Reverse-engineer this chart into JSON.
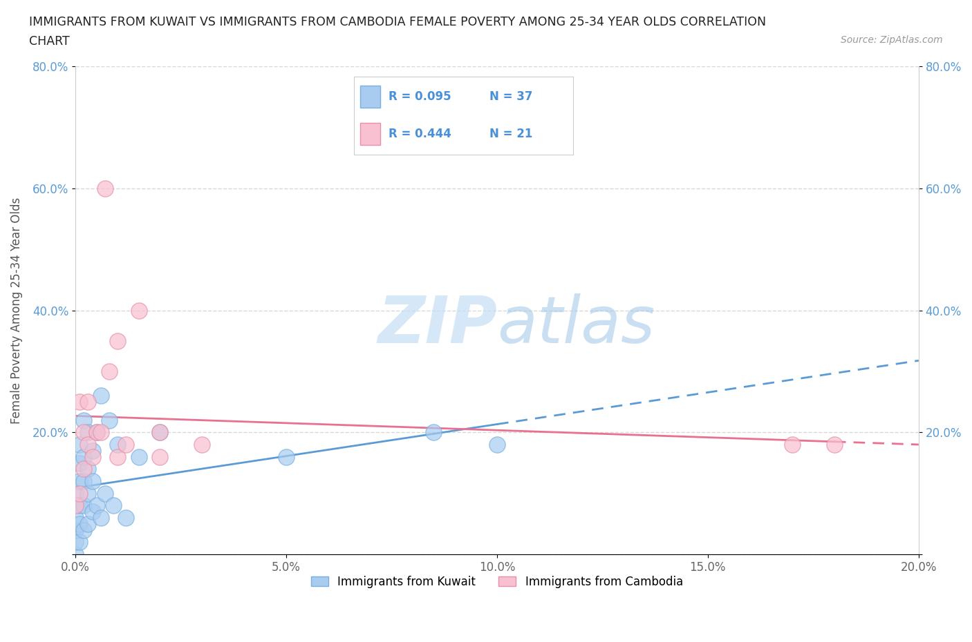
{
  "title_line1": "IMMIGRANTS FROM KUWAIT VS IMMIGRANTS FROM CAMBODIA FEMALE POVERTY AMONG 25-34 YEAR OLDS CORRELATION",
  "title_line2": "CHART",
  "source": "Source: ZipAtlas.com",
  "ylabel": "Female Poverty Among 25-34 Year Olds",
  "kuwait": {
    "R": 0.095,
    "N": 37,
    "dot_color": "#a8ccf0",
    "dot_edge_color": "#7ab0e0",
    "line_color": "#5b9bd5",
    "x": [
      0.0,
      0.0,
      0.0,
      0.0,
      0.0,
      0.001,
      0.001,
      0.001,
      0.001,
      0.001,
      0.001,
      0.002,
      0.002,
      0.002,
      0.002,
      0.002,
      0.003,
      0.003,
      0.003,
      0.003,
      0.004,
      0.004,
      0.004,
      0.005,
      0.005,
      0.006,
      0.006,
      0.007,
      0.008,
      0.009,
      0.01,
      0.012,
      0.015,
      0.02,
      0.05,
      0.085,
      0.1
    ],
    "y": [
      0.0,
      0.02,
      0.04,
      0.06,
      0.1,
      0.02,
      0.05,
      0.08,
      0.12,
      0.15,
      0.18,
      0.04,
      0.08,
      0.12,
      0.16,
      0.22,
      0.05,
      0.1,
      0.14,
      0.2,
      0.07,
      0.12,
      0.17,
      0.08,
      0.2,
      0.06,
      0.26,
      0.1,
      0.22,
      0.08,
      0.18,
      0.06,
      0.16,
      0.2,
      0.16,
      0.2,
      0.18
    ]
  },
  "cambodia": {
    "R": 0.444,
    "N": 21,
    "dot_color": "#f8c0d0",
    "dot_edge_color": "#e890a8",
    "line_color": "#e87090",
    "x": [
      0.0,
      0.001,
      0.001,
      0.002,
      0.002,
      0.003,
      0.003,
      0.004,
      0.005,
      0.006,
      0.007,
      0.008,
      0.01,
      0.01,
      0.012,
      0.015,
      0.02,
      0.02,
      0.03,
      0.17,
      0.18
    ],
    "y": [
      0.08,
      0.1,
      0.25,
      0.14,
      0.2,
      0.18,
      0.25,
      0.16,
      0.2,
      0.2,
      0.6,
      0.3,
      0.35,
      0.16,
      0.18,
      0.4,
      0.16,
      0.2,
      0.18,
      0.18,
      0.18
    ]
  },
  "xlim": [
    0.0,
    0.2
  ],
  "ylim": [
    0.0,
    0.8
  ],
  "xticks": [
    0.0,
    0.05,
    0.1,
    0.15,
    0.2
  ],
  "xtick_labels": [
    "0.0%",
    "5.0%",
    "10.0%",
    "15.0%",
    "20.0%"
  ],
  "yticks": [
    0.0,
    0.2,
    0.4,
    0.6,
    0.8
  ],
  "ytick_labels_left": [
    "",
    "20.0%",
    "40.0%",
    "60.0%",
    "80.0%"
  ],
  "ytick_labels_right": [
    "",
    "20.0%",
    "40.0%",
    "60.0%",
    "80.0%"
  ],
  "background_color": "#ffffff",
  "grid_color": "#d8d8d8",
  "watermark_color": "#c5dff5"
}
